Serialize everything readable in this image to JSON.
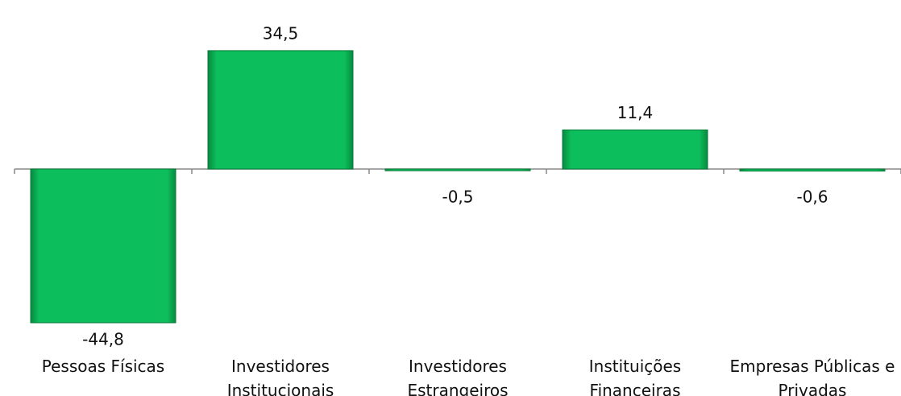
{
  "chart_data": {
    "type": "bar",
    "categories": [
      "Pessoas Físicas",
      "Investidores Institucionais",
      "Investidores Estrangeiros",
      "Instituições Financeiras",
      "Empresas Públicas e Privadas"
    ],
    "values": [
      -44.8,
      34.5,
      -0.5,
      11.4,
      -0.6
    ],
    "value_labels": [
      "-44,8",
      "34,5",
      "-0,5",
      "11,4",
      "-0,6"
    ],
    "color": "#0dbf5c"
  }
}
